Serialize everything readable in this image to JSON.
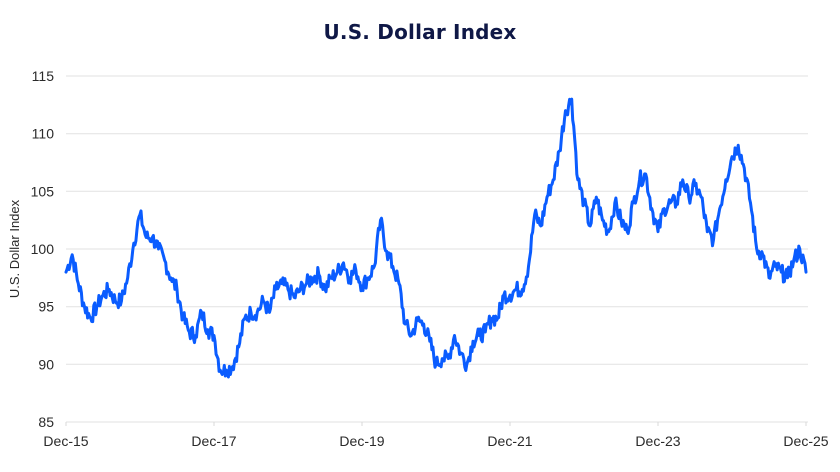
{
  "chart_data": {
    "type": "line",
    "title": "U.S. Dollar Index",
    "xlabel": "",
    "ylabel": "U.S. Dollar Index",
    "ylim": [
      85,
      115
    ],
    "yticks": [
      85,
      90,
      95,
      100,
      105,
      110,
      115
    ],
    "xticks": [
      "Dec-15",
      "Dec-17",
      "Dec-19",
      "Dec-21",
      "Dec-23",
      "Dec-25"
    ],
    "grid": "horizontal",
    "legend": "none",
    "line_color": "#0a5cff",
    "series": [
      {
        "name": "U.S. Dollar Index",
        "x": [
          "Dec-15",
          "Jan-16",
          "Feb-16",
          "Mar-16",
          "Apr-16",
          "May-16",
          "Jun-16",
          "Jul-16",
          "Aug-16",
          "Sep-16",
          "Oct-16",
          "Nov-16",
          "Dec-16",
          "Jan-17",
          "Feb-17",
          "Mar-17",
          "Apr-17",
          "May-17",
          "Jun-17",
          "Jul-17",
          "Aug-17",
          "Sep-17",
          "Oct-17",
          "Nov-17",
          "Dec-17",
          "Jan-18",
          "Feb-18",
          "Mar-18",
          "Apr-18",
          "May-18",
          "Jun-18",
          "Jul-18",
          "Aug-18",
          "Sep-18",
          "Oct-18",
          "Nov-18",
          "Dec-18",
          "Jan-19",
          "Feb-19",
          "Mar-19",
          "Apr-19",
          "May-19",
          "Jun-19",
          "Jul-19",
          "Aug-19",
          "Sep-19",
          "Oct-19",
          "Nov-19",
          "Dec-19",
          "Jan-20",
          "Feb-20",
          "Mar-20",
          "Apr-20",
          "May-20",
          "Jun-20",
          "Jul-20",
          "Aug-20",
          "Sep-20",
          "Oct-20",
          "Nov-20",
          "Dec-20",
          "Jan-21",
          "Feb-21",
          "Mar-21",
          "Apr-21",
          "May-21",
          "Jun-21",
          "Jul-21",
          "Aug-21",
          "Sep-21",
          "Oct-21",
          "Nov-21",
          "Dec-21",
          "Jan-22",
          "Feb-22",
          "Mar-22",
          "Apr-22",
          "May-22",
          "Jun-22",
          "Jul-22",
          "Aug-22",
          "Sep-22",
          "Oct-22",
          "Nov-22",
          "Dec-22",
          "Jan-23",
          "Feb-23",
          "Mar-23",
          "Apr-23",
          "May-23",
          "Jun-23",
          "Jul-23",
          "Aug-23",
          "Sep-23",
          "Oct-23",
          "Nov-23",
          "Dec-23",
          "Jan-24",
          "Feb-24",
          "Mar-24",
          "Apr-24",
          "May-24",
          "Jun-24",
          "Jul-24",
          "Aug-24",
          "Sep-24",
          "Oct-24",
          "Nov-24",
          "Dec-24",
          "Jan-25",
          "Feb-25",
          "Mar-25",
          "Apr-25",
          "May-25",
          "Jun-25",
          "Jul-25",
          "Aug-25",
          "Sep-25",
          "Oct-25",
          "Nov-25",
          "Dec-25"
        ],
        "values": [
          98.0,
          99.5,
          97.0,
          95.0,
          94.0,
          95.0,
          96.0,
          96.5,
          95.5,
          95.5,
          97.5,
          100.5,
          103.0,
          101.0,
          101.0,
          100.0,
          99.0,
          97.5,
          96.5,
          94.0,
          92.8,
          92.5,
          94.5,
          93.0,
          92.5,
          89.5,
          89.5,
          89.8,
          91.5,
          94.0,
          94.5,
          94.5,
          95.5,
          94.5,
          96.5,
          97.0,
          96.5,
          95.8,
          96.5,
          97.0,
          97.5,
          97.8,
          96.5,
          97.5,
          98.0,
          98.8,
          97.5,
          98.2,
          96.8,
          97.5,
          98.5,
          102.5,
          99.8,
          98.5,
          97.0,
          93.5,
          92.5,
          93.8,
          93.5,
          92.0,
          90.0,
          90.5,
          90.5,
          92.5,
          91.0,
          90.0,
          92.0,
          92.5,
          92.8,
          94.0,
          94.0,
          96.0,
          96.0,
          96.5,
          96.5,
          98.5,
          103.0,
          102.0,
          104.5,
          106.0,
          108.5,
          112.0,
          113.0,
          106.0,
          104.0,
          102.0,
          104.5,
          102.5,
          101.5,
          104.0,
          102.5,
          101.5,
          104.0,
          106.0,
          106.5,
          103.5,
          101.5,
          103.5,
          104.0,
          104.0,
          106.0,
          104.5,
          105.5,
          104.5,
          101.5,
          100.8,
          103.5,
          106.0,
          108.0,
          109.0,
          107.0,
          104.0,
          100.0,
          99.5,
          97.5,
          98.5,
          98.0,
          97.5,
          99.0,
          100.0,
          98.0
        ]
      }
    ]
  }
}
